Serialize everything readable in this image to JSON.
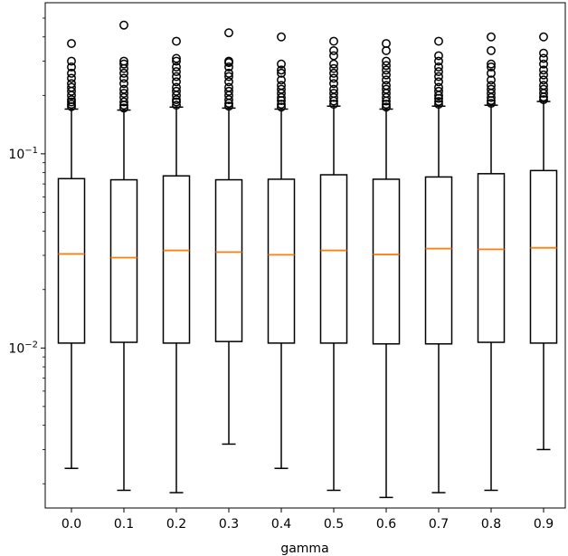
{
  "chart_data": {
    "type": "box",
    "xlabel": "gamma",
    "ylabel": "",
    "yscale": "log",
    "ylim": [
      0.0015,
      0.6
    ],
    "grid": false,
    "categories": [
      "0.0",
      "0.1",
      "0.2",
      "0.3",
      "0.4",
      "0.5",
      "0.6",
      "0.7",
      "0.8",
      "0.9"
    ],
    "y_ticks": [
      {
        "value": 0.01,
        "base": "10",
        "exp": "−2"
      },
      {
        "value": 0.1,
        "base": "10",
        "exp": "−1"
      }
    ],
    "colors": {
      "box": "#000000",
      "median": "#ff7f0e",
      "flier": "#000000"
    },
    "boxes": [
      {
        "whisker_low": 0.0024,
        "q1": 0.0106,
        "median": 0.0305,
        "q3": 0.0745,
        "whisker_high": 0.17,
        "fliers": [
          0.175,
          0.18,
          0.185,
          0.19,
          0.2,
          0.21,
          0.22,
          0.23,
          0.245,
          0.26,
          0.28,
          0.3,
          0.37
        ]
      },
      {
        "whisker_low": 0.00185,
        "q1": 0.0107,
        "median": 0.0292,
        "q3": 0.0735,
        "whisker_high": 0.168,
        "fliers": [
          0.172,
          0.178,
          0.185,
          0.195,
          0.205,
          0.215,
          0.23,
          0.245,
          0.26,
          0.275,
          0.29,
          0.3,
          0.46
        ]
      },
      {
        "whisker_low": 0.0018,
        "q1": 0.0106,
        "median": 0.0318,
        "q3": 0.077,
        "whisker_high": 0.174,
        "fliers": [
          0.178,
          0.185,
          0.19,
          0.2,
          0.21,
          0.22,
          0.235,
          0.25,
          0.265,
          0.28,
          0.3,
          0.31,
          0.38
        ]
      },
      {
        "whisker_low": 0.0032,
        "q1": 0.0108,
        "median": 0.0312,
        "q3": 0.0735,
        "whisker_high": 0.172,
        "fliers": [
          0.176,
          0.182,
          0.19,
          0.2,
          0.21,
          0.22,
          0.235,
          0.25,
          0.26,
          0.28,
          0.295,
          0.3,
          0.42
        ]
      },
      {
        "whisker_low": 0.0024,
        "q1": 0.0106,
        "median": 0.0302,
        "q3": 0.074,
        "whisker_high": 0.17,
        "fliers": [
          0.174,
          0.18,
          0.188,
          0.195,
          0.205,
          0.215,
          0.225,
          0.24,
          0.26,
          0.27,
          0.29,
          0.4
        ]
      },
      {
        "whisker_low": 0.00185,
        "q1": 0.0106,
        "median": 0.0318,
        "q3": 0.078,
        "whisker_high": 0.176,
        "fliers": [
          0.18,
          0.187,
          0.195,
          0.205,
          0.215,
          0.23,
          0.245,
          0.26,
          0.275,
          0.29,
          0.32,
          0.34,
          0.38
        ]
      },
      {
        "whisker_low": 0.0017,
        "q1": 0.0105,
        "median": 0.0303,
        "q3": 0.074,
        "whisker_high": 0.17,
        "fliers": [
          0.174,
          0.18,
          0.187,
          0.195,
          0.205,
          0.215,
          0.225,
          0.24,
          0.255,
          0.27,
          0.285,
          0.3,
          0.34,
          0.37
        ]
      },
      {
        "whisker_low": 0.0018,
        "q1": 0.0105,
        "median": 0.0325,
        "q3": 0.076,
        "whisker_high": 0.176,
        "fliers": [
          0.18,
          0.186,
          0.193,
          0.2,
          0.21,
          0.22,
          0.235,
          0.25,
          0.265,
          0.28,
          0.3,
          0.32,
          0.38
        ]
      },
      {
        "whisker_low": 0.00185,
        "q1": 0.0107,
        "median": 0.0322,
        "q3": 0.079,
        "whisker_high": 0.178,
        "fliers": [
          0.182,
          0.188,
          0.195,
          0.205,
          0.215,
          0.225,
          0.24,
          0.26,
          0.28,
          0.29,
          0.34,
          0.4
        ]
      },
      {
        "whisker_low": 0.003,
        "q1": 0.0106,
        "median": 0.0328,
        "q3": 0.082,
        "whisker_high": 0.186,
        "fliers": [
          0.19,
          0.196,
          0.205,
          0.215,
          0.225,
          0.24,
          0.255,
          0.27,
          0.29,
          0.31,
          0.33,
          0.4
        ]
      }
    ]
  }
}
